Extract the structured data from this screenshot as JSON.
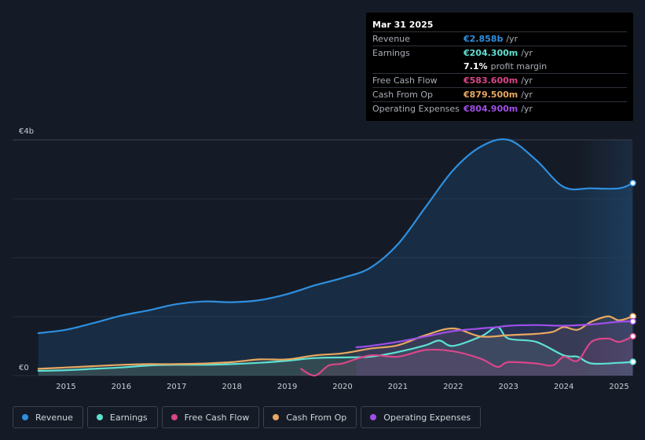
{
  "tooltip": {
    "date": "Mar 31 2025",
    "rows": [
      {
        "label": "Revenue",
        "value": "€2.858b",
        "unit": "/yr",
        "color": "#2e8fe0"
      },
      {
        "label": "Earnings",
        "value": "€204.300m",
        "unit": "/yr",
        "color": "#5ee0d2"
      },
      {
        "label": "",
        "value": "7.1%",
        "unit": "profit margin",
        "color": "#ffffff"
      },
      {
        "label": "Free Cash Flow",
        "value": "€583.600m",
        "unit": "/yr",
        "color": "#d9468a"
      },
      {
        "label": "Cash From Op",
        "value": "€879.500m",
        "unit": "/yr",
        "color": "#e8a860"
      },
      {
        "label": "Operating Expenses",
        "value": "€804.900m",
        "unit": "/yr",
        "color": "#a04ee8"
      }
    ]
  },
  "legend": [
    {
      "label": "Revenue",
      "color": "#2e8fe0"
    },
    {
      "label": "Earnings",
      "color": "#5ee0d2"
    },
    {
      "label": "Free Cash Flow",
      "color": "#d9468a"
    },
    {
      "label": "Cash From Op",
      "color": "#e8a860"
    },
    {
      "label": "Operating Expenses",
      "color": "#a04ee8"
    }
  ],
  "chart_data": {
    "type": "area",
    "title": "",
    "xlabel": "",
    "ylabel": "",
    "y_unit": "€b",
    "ylim": [
      0,
      3.5
    ],
    "y_tick_labels": [
      {
        "value": 3.5,
        "label": "€4b"
      },
      {
        "value": 0,
        "label": "€0"
      }
    ],
    "xlim": [
      2014.5,
      2025.25
    ],
    "x_ticks": [
      2015,
      2016,
      2017,
      2018,
      2019,
      2020,
      2021,
      2022,
      2023,
      2024,
      2025
    ],
    "highlight_from": 2024.25,
    "grid": true,
    "series": [
      {
        "name": "Revenue",
        "color": "#2e8fe0",
        "fill": true,
        "x": [
          2014.5,
          2015.0,
          2015.5,
          2016.0,
          2016.5,
          2017.0,
          2017.5,
          2018.0,
          2018.5,
          2019.0,
          2019.5,
          2020.0,
          2020.5,
          2021.0,
          2021.5,
          2022.0,
          2022.5,
          2023.0,
          2023.5,
          2024.0,
          2024.5,
          2025.0,
          2025.25
        ],
        "values": [
          0.63,
          0.68,
          0.78,
          0.89,
          0.97,
          1.06,
          1.1,
          1.09,
          1.12,
          1.21,
          1.34,
          1.45,
          1.6,
          1.95,
          2.5,
          3.05,
          3.4,
          3.5,
          3.2,
          2.8,
          2.78,
          2.78,
          2.858
        ]
      },
      {
        "name": "Earnings",
        "color": "#5ee0d2",
        "fill": true,
        "x": [
          2014.5,
          2015.0,
          2015.5,
          2016.0,
          2016.5,
          2017.0,
          2017.5,
          2018.0,
          2018.5,
          2019.0,
          2019.5,
          2020.0,
          2020.5,
          2021.0,
          2021.5,
          2021.75,
          2022.0,
          2022.5,
          2022.8,
          2023.0,
          2023.5,
          2024.0,
          2024.25,
          2024.5,
          2025.0,
          2025.25
        ],
        "values": [
          0.07,
          0.08,
          0.1,
          0.12,
          0.15,
          0.16,
          0.16,
          0.17,
          0.19,
          0.22,
          0.26,
          0.27,
          0.28,
          0.35,
          0.45,
          0.52,
          0.44,
          0.58,
          0.72,
          0.55,
          0.5,
          0.3,
          0.28,
          0.18,
          0.19,
          0.2043
        ]
      },
      {
        "name": "Free Cash Flow",
        "color": "#d9468a",
        "fill": true,
        "x": [
          2019.25,
          2019.5,
          2019.75,
          2020.0,
          2020.5,
          2021.0,
          2021.5,
          2022.0,
          2022.5,
          2022.8,
          2023.0,
          2023.5,
          2023.8,
          2024.0,
          2024.25,
          2024.5,
          2024.8,
          2025.0,
          2025.25
        ],
        "values": [
          0.1,
          0.0,
          0.15,
          0.18,
          0.3,
          0.28,
          0.38,
          0.36,
          0.25,
          0.13,
          0.2,
          0.18,
          0.15,
          0.28,
          0.22,
          0.5,
          0.55,
          0.5,
          0.5836
        ]
      },
      {
        "name": "Cash From Op",
        "color": "#e8a860",
        "fill": true,
        "x": [
          2014.5,
          2015.0,
          2015.5,
          2016.0,
          2016.5,
          2017.0,
          2017.5,
          2018.0,
          2018.5,
          2019.0,
          2019.5,
          2020.0,
          2020.5,
          2021.0,
          2021.5,
          2022.0,
          2022.5,
          2023.0,
          2023.5,
          2023.8,
          2024.0,
          2024.25,
          2024.5,
          2024.8,
          2025.0,
          2025.25
        ],
        "values": [
          0.1,
          0.12,
          0.14,
          0.16,
          0.17,
          0.17,
          0.18,
          0.2,
          0.24,
          0.24,
          0.3,
          0.33,
          0.4,
          0.45,
          0.6,
          0.7,
          0.58,
          0.6,
          0.62,
          0.65,
          0.72,
          0.68,
          0.8,
          0.88,
          0.82,
          0.8795
        ]
      },
      {
        "name": "Operating Expenses",
        "color": "#a04ee8",
        "fill": true,
        "x": [
          2020.25,
          2020.5,
          2021.0,
          2021.5,
          2022.0,
          2022.5,
          2022.8,
          2023.0,
          2023.5,
          2024.0,
          2024.5,
          2025.0,
          2025.25
        ],
        "values": [
          0.42,
          0.44,
          0.5,
          0.58,
          0.66,
          0.7,
          0.72,
          0.74,
          0.75,
          0.74,
          0.76,
          0.8,
          0.8049
        ]
      }
    ]
  }
}
